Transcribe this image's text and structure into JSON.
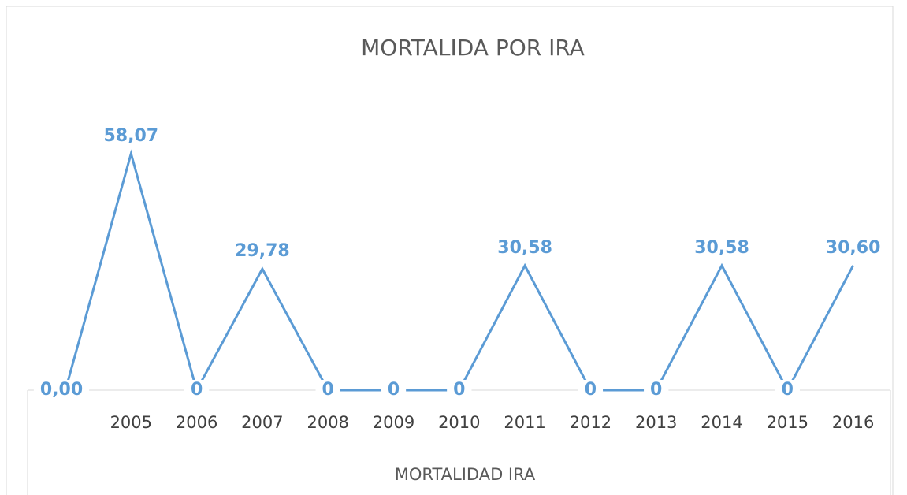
{
  "chart_data": {
    "type": "line",
    "title": "MORTALIDA POR IRA",
    "x_label": "MORTALIDAD IRA",
    "categories": [
      null,
      "2005",
      "2006",
      "2007",
      "2008",
      "2009",
      "2010",
      "2011",
      "2012",
      "2013",
      "2014",
      "2015",
      "2016"
    ],
    "series": [
      {
        "name": "MORTALIDAD IRA",
        "color": "#5b9bd5",
        "values": [
          0,
          58.07,
          0,
          29.78,
          0,
          0,
          0,
          30.58,
          0,
          0,
          30.58,
          0,
          30.6
        ],
        "value_labels": [
          "0,00",
          "58,07",
          "0",
          "29,78",
          "0",
          "0",
          "0",
          "30,58",
          "0",
          "0",
          "30,58",
          "0",
          "30,60"
        ]
      }
    ],
    "ylim": [
      0,
      60
    ],
    "grid": false,
    "legend": false
  }
}
